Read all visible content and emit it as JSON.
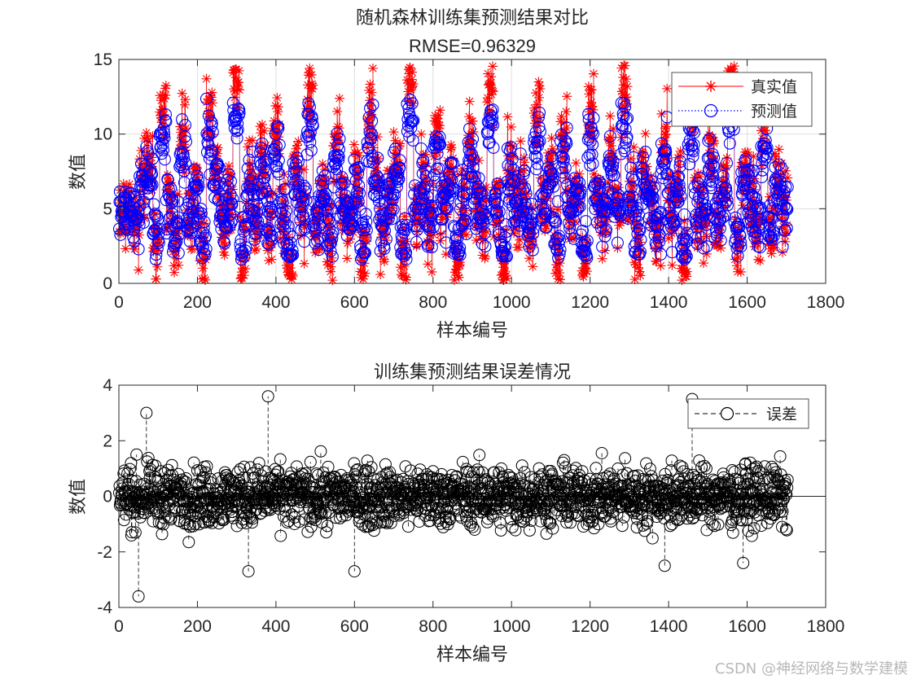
{
  "watermark": "CSDN @神经网络与数学建模",
  "chart_data": [
    {
      "type": "line",
      "title": "随机森林训练集预测结果对比",
      "subtitle": "RMSE=0.96329",
      "xlabel": "样本编号",
      "ylabel": "数值",
      "xlim": [
        0,
        1800
      ],
      "ylim": [
        0,
        15
      ],
      "xticks": [
        "0",
        "200",
        "400",
        "600",
        "800",
        "1000",
        "1200",
        "1400",
        "1600",
        "1800"
      ],
      "yticks": [
        "0",
        "5",
        "10",
        "15"
      ],
      "grid": true,
      "legend_position": "top-right",
      "n_samples": 1703,
      "series": [
        {
          "name": "真实值",
          "color": "#ff0000",
          "marker": "*",
          "line": "solid",
          "sampled_values": [
            4.8,
            5.2,
            3.6,
            6.9,
            8.1,
            2.4,
            12.1,
            5.5,
            3.1,
            9.8,
            4.2,
            6.3,
            1.7,
            11.2,
            7.4,
            3.9,
            5.8,
            14.1,
            2.2,
            6.6,
            4.4,
            8.8,
            3.3,
            10.5,
            5.1,
            1.2,
            7.9,
            4.6,
            12.4,
            3.8,
            6.1,
            2.9,
            9.2,
            5.4,
            4.1,
            7.2,
            1.5,
            11.6,
            6.8,
            3.4,
            5.9,
            8.4,
            2.6,
            13.1,
            4.9,
            6.4,
            3.2,
            10.1,
            5.6,
            7.7,
            1.9,
            4.3,
            9.5,
            6.2,
            3.7,
            12.6,
            5.3,
            2.1,
            8.2,
            4.7,
            6.9,
            3.5,
            11.4,
            5.2,
            7.6,
            2.3,
            9.9,
            4.5,
            6.1,
            1.4,
            10.8,
            5.7,
            3.8,
            8.6,
            4.4,
            12.9,
            6.3,
            2.7,
            7.1,
            5.5,
            3.1,
            9.3,
            4.8,
            6.7,
            1.8,
            11.8,
            5.1,
            4.2,
            8.9,
            3.6,
            6.5,
            13.6,
            2.5,
            7.3,
            5.9,
            4.1,
            10.2,
            3.3,
            6.8,
            5.4
          ]
        },
        {
          "name": "预测值",
          "color": "#0000ff",
          "marker": "o",
          "line": "dotted",
          "sampled_values": [
            4.9,
            5.6,
            4.1,
            6.6,
            7.4,
            3.1,
            10.4,
            5.7,
            3.6,
            8.9,
            4.5,
            6.1,
            2.6,
            10.1,
            7.1,
            4.2,
            5.9,
            11.8,
            3.0,
            6.4,
            4.6,
            8.1,
            3.9,
            9.6,
            5.3,
            2.4,
            7.5,
            4.8,
            11.1,
            4.1,
            6.0,
            3.4,
            8.7,
            5.5,
            4.4,
            6.9,
            2.7,
            10.5,
            6.5,
            3.9,
            5.8,
            7.9,
            3.2,
            11.6,
            5.0,
            6.3,
            3.6,
            9.4,
            5.6,
            7.3,
            2.8,
            4.6,
            8.8,
            6.1,
            4.0,
            11.2,
            5.4,
            2.9,
            7.8,
            4.9,
            6.6,
            3.9,
            10.4,
            5.3,
            7.2,
            3.1,
            9.1,
            4.7,
            6.0,
            2.5,
            9.9,
            5.7,
            4.1,
            8.0,
            4.6,
            11.5,
            6.2,
            3.3,
            6.9,
            5.6,
            3.6,
            8.6,
            4.9,
            6.4,
            2.9,
            10.8,
            5.2,
            4.5,
            8.3,
            3.9,
            6.3,
            12.0,
            3.2,
            7.0,
            5.8,
            4.4,
            9.5,
            3.8,
            6.5,
            5.5
          ]
        }
      ]
    },
    {
      "type": "line",
      "title": "训练集预测结果误差情况",
      "xlabel": "样本编号",
      "ylabel": "数值",
      "xlim": [
        0,
        1800
      ],
      "ylim": [
        -4,
        4
      ],
      "xticks": [
        "0",
        "200",
        "400",
        "600",
        "800",
        "1000",
        "1200",
        "1400",
        "1600",
        "1800"
      ],
      "yticks": [
        "-4",
        "-2",
        "0",
        "2",
        "4"
      ],
      "grid": false,
      "baseline": 0,
      "legend_position": "top-right",
      "n_samples": 1703,
      "series": [
        {
          "name": "误差",
          "color": "#000000",
          "marker": "o",
          "line": "dashed",
          "sampled_values": [
            0.1,
            0.4,
            -0.5,
            -0.3,
            -0.7,
            0.7,
            -1.7,
            0.2,
            0.5,
            -0.9,
            0.3,
            -0.2,
            0.9,
            -1.1,
            -0.3,
            0.3,
            0.1,
            -2.3,
            0.8,
            -0.2,
            0.2,
            -0.7,
            0.6,
            -0.9,
            0.2,
            1.2,
            -0.4,
            0.2,
            -1.3,
            0.3,
            -0.1,
            0.5,
            -0.5,
            0.1,
            0.3,
            -0.3,
            1.2,
            -1.1,
            -0.3,
            0.5,
            -0.1,
            -0.5,
            0.6,
            -1.5,
            0.1,
            -0.1,
            0.4,
            -0.7,
            0.0,
            -0.4,
            0.9,
            0.3,
            -0.7,
            -0.1,
            0.3,
            -1.4,
            0.1,
            0.8,
            -0.4,
            0.2,
            -0.3,
            0.4,
            -1.0,
            0.1,
            -0.4,
            0.8,
            -0.8,
            0.2,
            -0.1,
            1.1,
            -0.9,
            0.0,
            0.3,
            -0.6,
            0.2,
            -1.4,
            -0.1,
            0.6,
            -0.2,
            0.1,
            0.5,
            -0.7,
            0.1,
            -0.3,
            1.1,
            -1.0,
            0.1,
            0.3,
            -0.6,
            0.3,
            -0.2,
            -1.6,
            0.7,
            -0.3,
            -0.1,
            0.3,
            -0.7,
            0.5,
            -0.3,
            0.1
          ]
        }
      ],
      "notable_points": [
        {
          "x": 50,
          "y": -3.6
        },
        {
          "x": 70,
          "y": 3.0
        },
        {
          "x": 380,
          "y": 3.6
        },
        {
          "x": 600,
          "y": -2.7
        },
        {
          "x": 330,
          "y": -2.7
        },
        {
          "x": 1390,
          "y": -2.5
        },
        {
          "x": 1460,
          "y": 3.5
        },
        {
          "x": 1590,
          "y": -2.4
        }
      ]
    }
  ]
}
